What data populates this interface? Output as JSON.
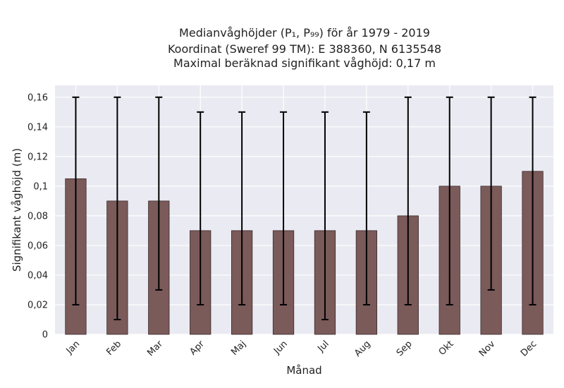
{
  "chart_data": {
    "type": "bar",
    "title_lines": [
      "Medianvåghöjder (P₁, P₉₉) för år 1979 - 2019",
      "Koordinat (Sweref 99 TM): E 388360, N 6135548",
      "Maximal beräknad signifikant våghöjd: 0,17 m"
    ],
    "xlabel": "Månad",
    "ylabel": "Signifikant våghöjd (m)",
    "categories": [
      "Jan",
      "Feb",
      "Mar",
      "Apr",
      "Maj",
      "Jun",
      "Jul",
      "Aug",
      "Sep",
      "Okt",
      "Nov",
      "Dec"
    ],
    "values": [
      0.105,
      0.09,
      0.09,
      0.07,
      0.07,
      0.07,
      0.07,
      0.07,
      0.08,
      0.1,
      0.1,
      0.11
    ],
    "p1": [
      0.02,
      0.01,
      0.03,
      0.02,
      0.02,
      0.02,
      0.01,
      0.02,
      0.02,
      0.02,
      0.03,
      0.02
    ],
    "p99": [
      0.16,
      0.16,
      0.16,
      0.15,
      0.15,
      0.15,
      0.15,
      0.15,
      0.16,
      0.16,
      0.16,
      0.16
    ],
    "ylim": [
      0,
      0.168
    ],
    "yticks": [
      0,
      0.02,
      0.04,
      0.06,
      0.08,
      0.1,
      0.12,
      0.14,
      0.16
    ],
    "ytick_labels": [
      "0",
      "0,02",
      "0,04",
      "0,06",
      "0,08",
      "0,1",
      "0,12",
      "0,14",
      "0,16"
    ],
    "grid": true,
    "colors": {
      "bar": "#7b5a5a",
      "bar_edge": "#3a2a2a",
      "errorbar": "#000000",
      "plot_background": "#eaeaf2",
      "grid": "#ffffff"
    }
  }
}
